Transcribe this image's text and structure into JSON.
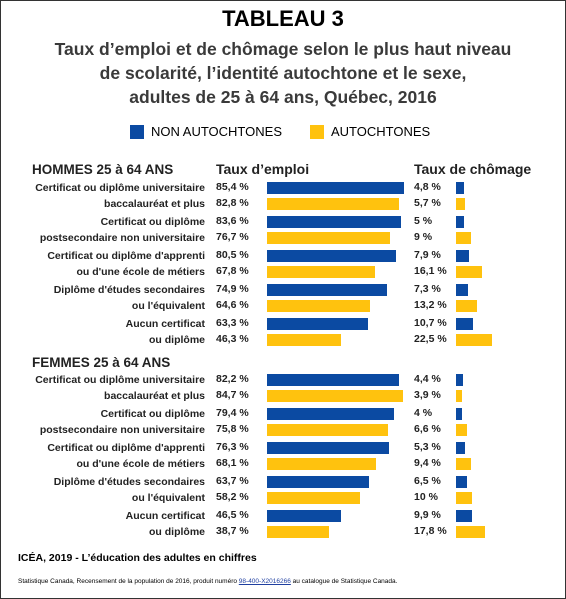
{
  "title": "TABLEAU 3",
  "subtitle_lines": [
    "Taux d’emploi et de chômage selon le plus haut niveau",
    "de scolarité, l’identité autochtone et le sexe,",
    "adultes de 25 à 64 ans, Québec, 2016"
  ],
  "legend": [
    {
      "label": "NON AUTOCHTONES",
      "color": "#0b4aa2"
    },
    {
      "label": "AUTOCHTONES",
      "color": "#ffc20e"
    }
  ],
  "col_headers": {
    "emploi": "Taux d’emploi",
    "chomage": "Taux de chômage"
  },
  "chart_data": {
    "type": "bar",
    "orientation": "horizontal",
    "categories": [
      "Certificat ou diplôme universitaire baccalauréat et plus",
      "Certificat ou diplôme postsecondaire non universitaire",
      "Certificat ou diplôme d'apprenti ou d'une école de métiers",
      "Diplôme d'études secondaires ou l'équivalent",
      "Aucun certificat ou diplôme"
    ],
    "groups": [
      {
        "name": "HOMMES 25 à 64 ANS",
        "rows": [
          {
            "label": [
              "Certificat ou diplôme universitaire",
              "baccalauréat et plus"
            ],
            "emploi": [
              85.4,
              82.8
            ],
            "emploi_labels": [
              "85,4 %",
              "82,8 %"
            ],
            "chomage": [
              4.8,
              5.7
            ],
            "chomage_labels": [
              "4,8 %",
              "5,7 %"
            ]
          },
          {
            "label": [
              "Certificat ou diplôme",
              "postsecondaire non universitaire"
            ],
            "emploi": [
              83.6,
              76.7
            ],
            "emploi_labels": [
              "83,6 %",
              "76,7 %"
            ],
            "chomage": [
              5,
              9
            ],
            "chomage_labels": [
              "5 %",
              "9 %"
            ]
          },
          {
            "label": [
              "Certificat ou diplôme d'apprenti",
              "ou d'une école de métiers"
            ],
            "emploi": [
              80.5,
              67.8
            ],
            "emploi_labels": [
              "80,5 %",
              "67,8 %"
            ],
            "chomage": [
              7.9,
              16.1
            ],
            "chomage_labels": [
              "7,9 %",
              "16,1 %"
            ]
          },
          {
            "label": [
              "Diplôme d'études secondaires",
              "ou l'équivalent"
            ],
            "emploi": [
              74.9,
              64.6
            ],
            "emploi_labels": [
              "74,9 %",
              "64,6 %"
            ],
            "chomage": [
              7.3,
              13.2
            ],
            "chomage_labels": [
              "7,3 %",
              "13,2 %"
            ]
          },
          {
            "label": [
              "Aucun certificat",
              "ou diplôme"
            ],
            "emploi": [
              63.3,
              46.3
            ],
            "emploi_labels": [
              "63,3 %",
              "46,3 %"
            ],
            "chomage": [
              10.7,
              22.5
            ],
            "chomage_labels": [
              "10,7 %",
              "22,5 %"
            ]
          }
        ]
      },
      {
        "name": "FEMMES 25 à 64 ANS",
        "rows": [
          {
            "label": [
              "Certificat ou diplôme universitaire",
              "baccalauréat et plus"
            ],
            "emploi": [
              82.2,
              84.7
            ],
            "emploi_labels": [
              "82,2 %",
              "84,7 %"
            ],
            "chomage": [
              4.4,
              3.9
            ],
            "chomage_labels": [
              "4,4 %",
              "3,9 %"
            ]
          },
          {
            "label": [
              "Certificat ou diplôme",
              "postsecondaire non universitaire"
            ],
            "emploi": [
              79.4,
              75.8
            ],
            "emploi_labels": [
              "79,4 %",
              "75,8 %"
            ],
            "chomage": [
              4,
              6.6
            ],
            "chomage_labels": [
              "4 %",
              "6,6 %"
            ]
          },
          {
            "label": [
              "Certificat ou diplôme d'apprenti",
              "ou d'une école de métiers"
            ],
            "emploi": [
              76.3,
              68.1
            ],
            "emploi_labels": [
              "76,3 %",
              "68,1 %"
            ],
            "chomage": [
              5.3,
              9.4
            ],
            "chomage_labels": [
              "5,3 %",
              "9,4 %"
            ]
          },
          {
            "label": [
              "Diplôme d'études secondaires",
              "ou l'équivalent"
            ],
            "emploi": [
              63.7,
              58.2
            ],
            "emploi_labels": [
              "63,7 %",
              "58,2 %"
            ],
            "chomage": [
              6.5,
              10
            ],
            "chomage_labels": [
              "6,5 %",
              "10 %"
            ]
          },
          {
            "label": [
              "Aucun certificat",
              "ou diplôme"
            ],
            "emploi": [
              46.5,
              38.7
            ],
            "emploi_labels": [
              "46,5 %",
              "38,7 %"
            ],
            "chomage": [
              9.9,
              17.8
            ],
            "chomage_labels": [
              "9,9 %",
              "17,8 %"
            ]
          }
        ]
      }
    ]
  },
  "footer": {
    "source_line": "ICÉA, 2019 - L’éducation des adultes en chiffres",
    "citation_prefix": "Statistique Canada, Recensement de la population de 2016, produit numéro ",
    "citation_link": "98-400-X2016266",
    "citation_suffix": " au catalogue de Statistique Canada."
  }
}
